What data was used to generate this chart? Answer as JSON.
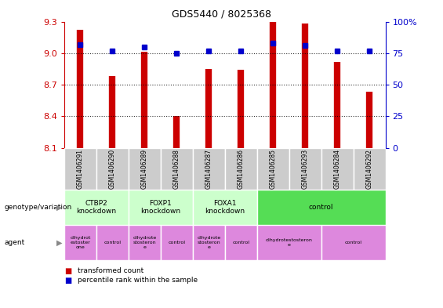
{
  "title": "GDS5440 / 8025368",
  "samples": [
    "GSM1406291",
    "GSM1406290",
    "GSM1406289",
    "GSM1406288",
    "GSM1406287",
    "GSM1406286",
    "GSM1406285",
    "GSM1406293",
    "GSM1406284",
    "GSM1406292"
  ],
  "transformed_count": [
    9.22,
    8.78,
    9.01,
    8.4,
    8.85,
    8.84,
    9.3,
    9.28,
    8.92,
    8.63
  ],
  "percentile_rank": [
    82,
    77,
    80,
    75,
    77,
    77,
    83,
    81,
    77,
    77
  ],
  "ylim": [
    8.1,
    9.3
  ],
  "yticks": [
    8.1,
    8.4,
    8.7,
    9.0,
    9.3
  ],
  "right_yticks": [
    0,
    25,
    50,
    75,
    100
  ],
  "right_ylim": [
    0,
    100
  ],
  "bar_color": "#cc0000",
  "dot_color": "#0000cc",
  "genotype_groups": [
    {
      "label": "CTBP2\nknockdown",
      "start": 0,
      "end": 2,
      "color": "#ccffcc"
    },
    {
      "label": "FOXP1\nknockdown",
      "start": 2,
      "end": 4,
      "color": "#ccffcc"
    },
    {
      "label": "FOXA1\nknockdown",
      "start": 4,
      "end": 6,
      "color": "#ccffcc"
    },
    {
      "label": "control",
      "start": 6,
      "end": 10,
      "color": "#55dd55"
    }
  ],
  "agent_groups": [
    {
      "label": "dihydrot\nestoster\none",
      "start": 0,
      "end": 1,
      "color": "#dd88dd"
    },
    {
      "label": "control",
      "start": 1,
      "end": 2,
      "color": "#dd88dd"
    },
    {
      "label": "dihydrote\nstosteron\ne",
      "start": 2,
      "end": 3,
      "color": "#dd88dd"
    },
    {
      "label": "control",
      "start": 3,
      "end": 4,
      "color": "#dd88dd"
    },
    {
      "label": "dihydrote\nstosteron\ne",
      "start": 4,
      "end": 5,
      "color": "#dd88dd"
    },
    {
      "label": "control",
      "start": 5,
      "end": 6,
      "color": "#dd88dd"
    },
    {
      "label": "dihydrotestosteron\ne",
      "start": 6,
      "end": 8,
      "color": "#dd88dd"
    },
    {
      "label": "control",
      "start": 8,
      "end": 10,
      "color": "#dd88dd"
    }
  ],
  "left_axis_color": "#cc0000",
  "right_axis_color": "#0000cc",
  "sample_bg_color": "#cccccc",
  "left_label": "genotype/variation",
  "agent_label": "agent",
  "legend_red": "transformed count",
  "legend_blue": "percentile rank within the sample"
}
